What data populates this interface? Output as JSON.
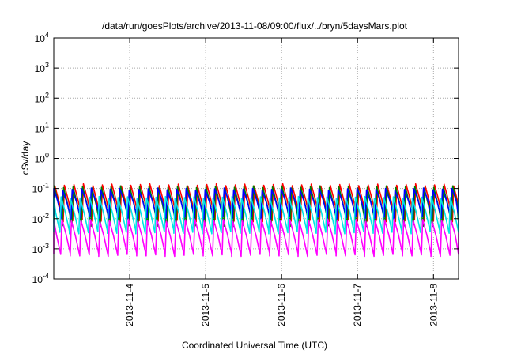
{
  "chart_data": {
    "type": "line",
    "title": "/data/run/goesPlots/archive/2013-11-08/09:00/flux/../bryn/5daysMars.plot",
    "xlabel": "Coordinated Universal Time (UTC)",
    "ylabel": "cSv/day",
    "y_scale": "log",
    "grid": true,
    "ylim_exponents": [
      -4,
      4
    ],
    "ytick_labels": [
      {
        "base": "10",
        "exp": "-4"
      },
      {
        "base": "10",
        "exp": "-3"
      },
      {
        "base": "10",
        "exp": "-2"
      },
      {
        "base": "10",
        "exp": "-1"
      },
      {
        "base": "10",
        "exp": "0"
      },
      {
        "base": "10",
        "exp": "1"
      },
      {
        "base": "10",
        "exp": "2"
      },
      {
        "base": "10",
        "exp": "3"
      },
      {
        "base": "10",
        "exp": "4"
      }
    ],
    "xlim_days": [
      0,
      5.33
    ],
    "xtick_labels": [
      "2013-11-4",
      "2013-11-5",
      "2013-11-6",
      "2013-11-7",
      "2013-11-8"
    ],
    "xtick_positions_days": [
      1,
      2,
      3,
      4,
      5
    ],
    "cycle_days": 0.125,
    "series": [
      {
        "color": "#ff0000",
        "peak_exp": -0.88,
        "trough_exp": -2.05
      },
      {
        "color": "#008000",
        "peak_exp": -0.95,
        "trough_exp": -2.2
      },
      {
        "color": "#0000ff",
        "peak_exp": -1.02,
        "trough_exp": -1.95
      },
      {
        "color": "#ff00ff",
        "peak_exp": -2.05,
        "trough_exp": -3.2
      },
      {
        "color": "#00e5e5",
        "peak_exp": -1.3,
        "trough_exp": -2.45
      }
    ]
  }
}
